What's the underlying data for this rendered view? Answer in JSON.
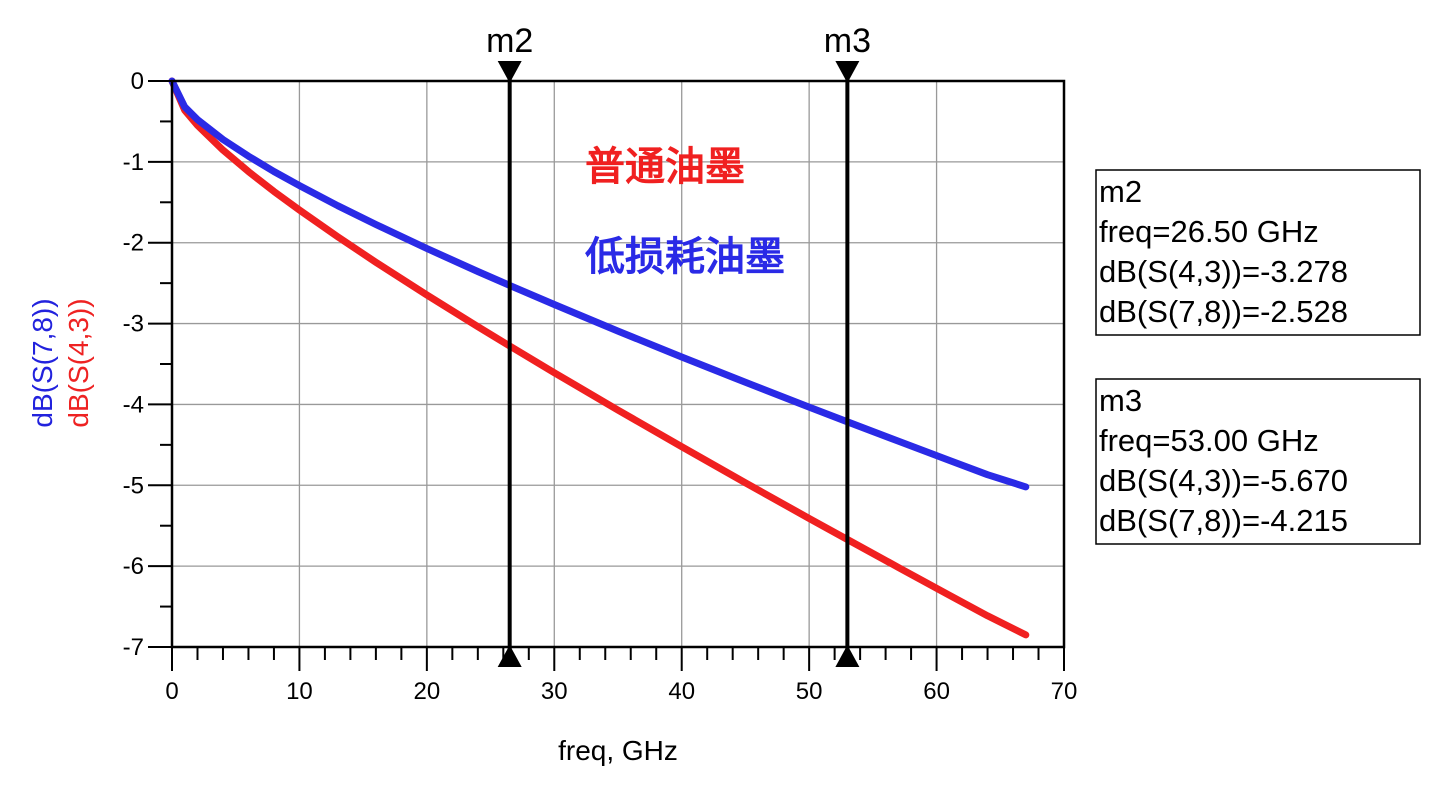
{
  "chart_data": {
    "type": "line",
    "title": "",
    "xlabel": "freq, GHz",
    "ylabels": [
      {
        "text": "dB(S(7,8))",
        "color": "#2222dd"
      },
      {
        "text": "dB(S(4,3))",
        "color": "#ee2222"
      }
    ],
    "xlim": [
      0,
      70
    ],
    "ylim": [
      -7,
      0
    ],
    "xticks": [
      0,
      10,
      20,
      30,
      40,
      50,
      60,
      70
    ],
    "yticks": [
      0,
      -1,
      -2,
      -3,
      -4,
      -5,
      -6,
      -7
    ],
    "grid": true,
    "series": [
      {
        "name": "dB(S(7,8))",
        "color": "#2a2ae6",
        "x": [
          0,
          1,
          2,
          4,
          6,
          8,
          10,
          13,
          16,
          20,
          24,
          26.5,
          30,
          35,
          40,
          45,
          50,
          53,
          57,
          61,
          64,
          67
        ],
        "y": [
          0,
          -0.32,
          -0.477,
          -0.723,
          -0.93,
          -1.119,
          -1.294,
          -1.542,
          -1.775,
          -2.072,
          -2.356,
          -2.528,
          -2.764,
          -3.093,
          -3.413,
          -3.726,
          -4.033,
          -4.215,
          -4.454,
          -4.692,
          -4.869,
          -5.02
        ]
      },
      {
        "name": "dB(S(4,3))",
        "color": "#f02020",
        "x": [
          0,
          1,
          2,
          4,
          6,
          8,
          10,
          13,
          16,
          20,
          24,
          26.5,
          30,
          35,
          40,
          45,
          50,
          53,
          57,
          61,
          64,
          67
        ],
        "y": [
          0,
          -0.361,
          -0.549,
          -0.854,
          -1.12,
          -1.365,
          -1.596,
          -1.926,
          -2.242,
          -2.647,
          -3.038,
          -3.278,
          -3.608,
          -4.07,
          -4.523,
          -4.969,
          -5.409,
          -5.67,
          -6.016,
          -6.359,
          -6.614,
          -6.85
        ]
      }
    ],
    "annotations": [
      {
        "text": "普通油墨",
        "color": "#f02020"
      },
      {
        "text": "低损耗油墨",
        "color": "#2a2ae6"
      }
    ],
    "markers": [
      {
        "name": "m2",
        "freq": 26.5,
        "lines": [
          "m2",
          "freq=26.50 GHz",
          "dB(S(4,3))=-3.278",
          "dB(S(7,8))=-2.528"
        ]
      },
      {
        "name": "m3",
        "freq": 53.0,
        "lines": [
          "m3",
          "freq=53.00 GHz",
          "dB(S(4,3))=-5.670",
          "dB(S(7,8))=-4.215"
        ]
      }
    ]
  }
}
